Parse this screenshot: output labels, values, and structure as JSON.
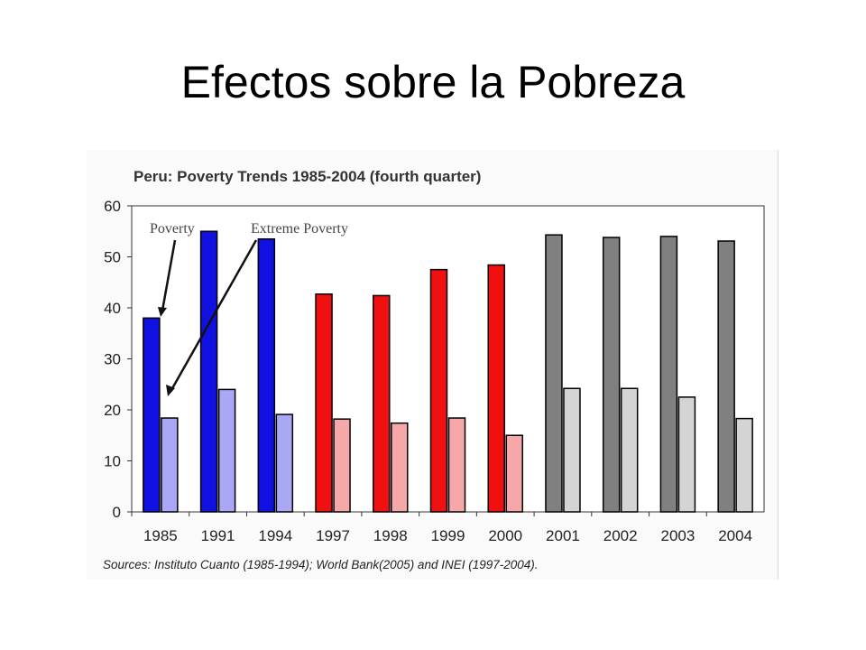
{
  "slide": {
    "title": "Efectos sobre la Pobreza"
  },
  "chart_data": {
    "type": "bar",
    "title": "Peru: Poverty Trends 1985-2004 (fourth quarter)",
    "categories": [
      "1985",
      "1991",
      "1994",
      "1997",
      "1998",
      "1999",
      "2000",
      "2001",
      "2002",
      "2003",
      "2004"
    ],
    "series": [
      {
        "name": "Poverty",
        "values": [
          38,
          55,
          53.5,
          42.7,
          42.4,
          47.5,
          48.4,
          54.3,
          53.8,
          54,
          53.1
        ]
      },
      {
        "name": "Extreme Poverty",
        "values": [
          18.4,
          24,
          19.1,
          18.2,
          17.4,
          18.4,
          15,
          24.2,
          24.2,
          22.5,
          18.3
        ]
      }
    ],
    "group_colors": {
      "1985-1994": {
        "poverty": "#1010e0",
        "extreme": "#a8a8f4"
      },
      "1997-2000": {
        "poverty": "#f01010",
        "extreme": "#f6a8a8"
      },
      "2001-2004": {
        "poverty": "#808080",
        "extreme": "#d4d4d4"
      }
    },
    "ylim": [
      0,
      60
    ],
    "yticks": [
      "0",
      "10",
      "20",
      "30",
      "40",
      "50",
      "60"
    ],
    "grid": false,
    "annotations": [
      "Poverty",
      "Extreme Poverty"
    ],
    "source": "Sources: Instituto Cuanto (1985-1994);  World Bank(2005) and INEI (1997-2004)."
  }
}
